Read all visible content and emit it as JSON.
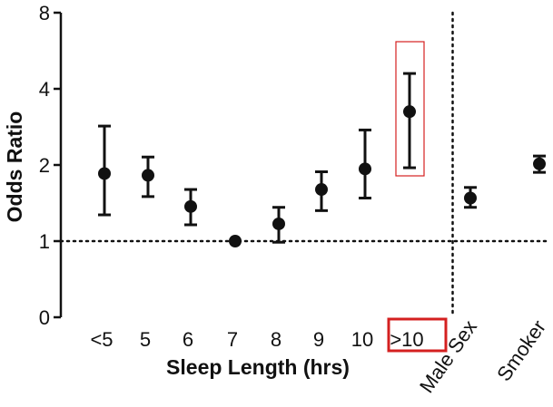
{
  "chart_data": {
    "type": "scatter",
    "subtype": "odds-ratio-with-error-bars",
    "xlabel": "Sleep Length (hrs)",
    "ylabel": "Odds Ratio",
    "y_scale": "log2",
    "y_ticks": [
      0,
      1,
      2,
      4,
      8
    ],
    "y_tick_labels": [
      "0",
      "1",
      "2",
      "4",
      "8"
    ],
    "ylim": [
      0,
      8
    ],
    "categories": [
      "<5",
      "5",
      "6",
      "7",
      "8",
      "9",
      "10",
      ">10",
      "Male Sex",
      "Smoker"
    ],
    "values": [
      1.85,
      1.82,
      1.37,
      1.0,
      1.17,
      1.6,
      1.93,
      3.25,
      1.48,
      2.02
    ],
    "ci_low": [
      1.27,
      1.5,
      1.16,
      1.0,
      0.99,
      1.32,
      1.48,
      1.95,
      1.36,
      1.87
    ],
    "ci_high": [
      2.85,
      2.15,
      1.6,
      1.0,
      1.36,
      1.88,
      2.75,
      4.6,
      1.63,
      2.17
    ],
    "reference_line": 1,
    "separator_after_category": ">10",
    "highlighted_category": ">10",
    "rotated_categories": [
      "Male Sex",
      "Smoker"
    ],
    "colors": {
      "marker": "#111111",
      "highlight": "#d42020"
    },
    "grid": false
  }
}
